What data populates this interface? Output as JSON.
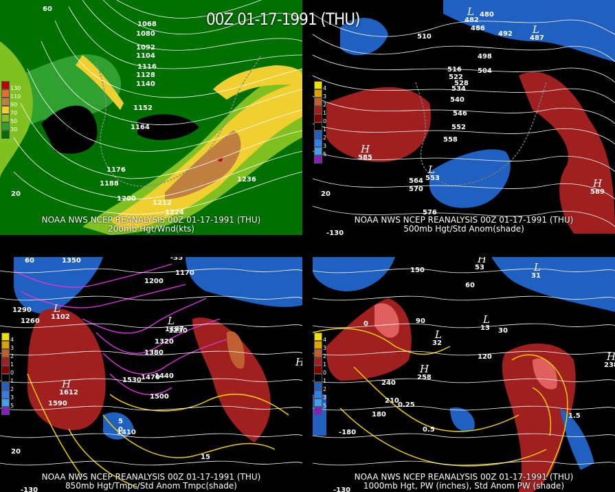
{
  "title": "00Z 01-17-1991 (THU)",
  "panels": [
    {
      "caption_line1": "NOAA NWS NCEP REANALYSIS 00Z 01-17-1991 (THU)",
      "caption_line2": "200mb Hgt/Wnd(kts)",
      "legend": [
        "130",
        "110",
        "90",
        "70",
        "50",
        "30"
      ],
      "legend_colors": [
        "#c00000",
        "#e07030",
        "#c08040",
        "#f0d030",
        "#80c020",
        "#30a030",
        "#007000"
      ],
      "contour_labels": [
        "1068",
        "1080",
        "1092",
        "1104",
        "1116",
        "1128",
        "1140",
        "1152",
        "1164",
        "1176",
        "1188",
        "1200",
        "1212",
        "1224",
        "1236"
      ],
      "edge_labels": [
        "60",
        "20"
      ]
    },
    {
      "caption_line1": "NOAA NWS NCEP REANALYSIS 00Z 01-17-1991 (THU)",
      "caption_line2": "500mb Hgt/Std Anom(shade)",
      "legend": [
        "4",
        "3",
        "2",
        "1",
        "0",
        "1",
        "2",
        "3",
        "5"
      ],
      "legend_colors": [
        "#f0e000",
        "#e0a000",
        "#c06030",
        "#a02020",
        "#800000",
        "#000000",
        "#2060c0",
        "#3080f0",
        "#40a0f0",
        "#8020c0"
      ],
      "contour_labels": [
        "480",
        "486",
        "492",
        "498",
        "504",
        "510",
        "516",
        "522",
        "528",
        "534",
        "540",
        "546",
        "552",
        "558",
        "564",
        "570",
        "576"
      ],
      "centers": [
        {
          "type": "L",
          "value": "482"
        },
        {
          "type": "L",
          "value": "487"
        },
        {
          "type": "H",
          "value": "585"
        },
        {
          "type": "L",
          "value": "553"
        },
        {
          "type": "H",
          "value": "589"
        }
      ],
      "edge_labels": [
        "20",
        "-130"
      ]
    },
    {
      "caption_line1": "NOAA NWS NCEP REANALYSIS 00Z 01-17-1991 (THU)",
      "caption_line2": "850mb Hgt/Tmpc/Std Anom Tmpc(shade)",
      "legend": [
        "4",
        "3",
        "2",
        "1",
        "0",
        "1",
        "2",
        "3",
        "5"
      ],
      "legend_colors": [
        "#f0e000",
        "#e0a000",
        "#c06030",
        "#a02020",
        "#800000",
        "#000000",
        "#2060c0",
        "#3080f0",
        "#40a0f0",
        "#8020c0"
      ],
      "contour_labels": [
        "1350",
        "1170",
        "1200",
        "1230",
        "1260",
        "1290",
        "1320",
        "1380",
        "1410",
        "1440",
        "1470",
        "1500",
        "1530",
        "1590"
      ],
      "temp_labels": [
        "-35",
        "15",
        "5",
        "0"
      ],
      "centers": [
        {
          "type": "L",
          "value": "1102"
        },
        {
          "type": "H",
          "value": "1612"
        },
        {
          "type": "L",
          "value": "1187"
        },
        {
          "type": "H",
          "value": ""
        }
      ],
      "edge_labels": [
        "60",
        "20",
        "-130"
      ]
    },
    {
      "caption_line1": "NOAA NWS NCEP REANALYSIS 00Z 01-17-1991 (THU)",
      "caption_line2": "1000mb Hgt, PW (inches), Std Anom PW (shade)",
      "legend": [
        "4",
        "3",
        "2",
        "1",
        "0",
        "1",
        "2",
        "3",
        "5"
      ],
      "legend_colors": [
        "#f0e000",
        "#e0a000",
        "#c06030",
        "#a02020",
        "#800000",
        "#000000",
        "#2060c0",
        "#3080f0",
        "#40a0f0",
        "#8020c0"
      ],
      "contour_labels": [
        "150",
        "60",
        "90",
        "120",
        "30",
        "0",
        "210",
        "240",
        "180",
        "-180"
      ],
      "pw_labels": [
        "0.25",
        "0.5",
        "1.5"
      ],
      "centers": [
        {
          "type": "H",
          "value": "53"
        },
        {
          "type": "L",
          "value": "31"
        },
        {
          "type": "L",
          "value": "32"
        },
        {
          "type": "H",
          "value": "258"
        },
        {
          "type": "L",
          "value": "13"
        },
        {
          "type": "H",
          "value": "238"
        }
      ],
      "edge_labels": [
        "-130"
      ]
    }
  ]
}
